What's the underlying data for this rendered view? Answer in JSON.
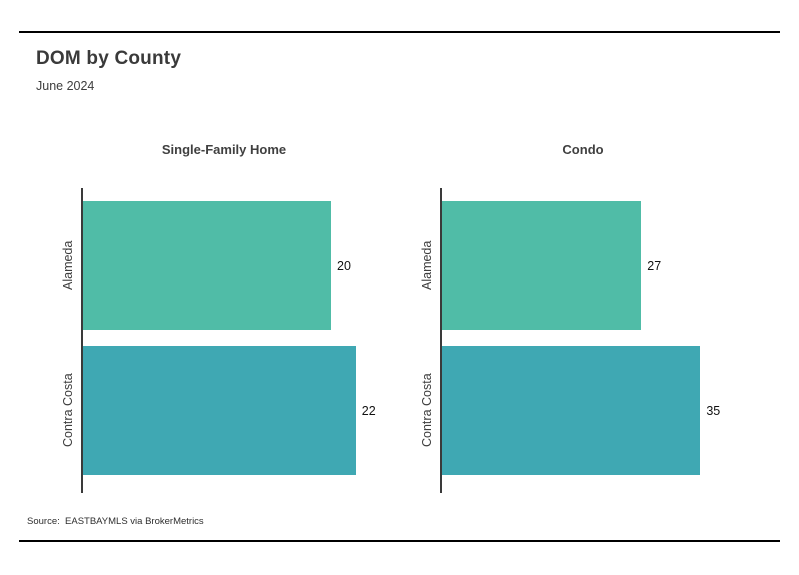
{
  "page": {
    "title": "DOM by County",
    "subtitle": "June 2024",
    "source": "Source:  EASTBAYMLS via BrokerMetrics"
  },
  "colors": {
    "bar_colors": [
      "#50BCA7",
      "#3FA8B3"
    ],
    "axis": "#3a3a3a",
    "rule": "#000000",
    "text": "#3d3d3d"
  },
  "chart_data": [
    {
      "type": "bar",
      "orientation": "horizontal",
      "title": "Single-Family Home",
      "categories": [
        "Alameda",
        "Contra Costa"
      ],
      "values": [
        20,
        22
      ],
      "xlim": [
        0,
        25
      ],
      "grid": false,
      "value_labels": "end-of-bar"
    },
    {
      "type": "bar",
      "orientation": "horizontal",
      "title": "Condo",
      "categories": [
        "Alameda",
        "Contra Costa"
      ],
      "values": [
        27,
        35
      ],
      "xlim": [
        0,
        42
      ],
      "grid": false,
      "value_labels": "end-of-bar"
    }
  ]
}
